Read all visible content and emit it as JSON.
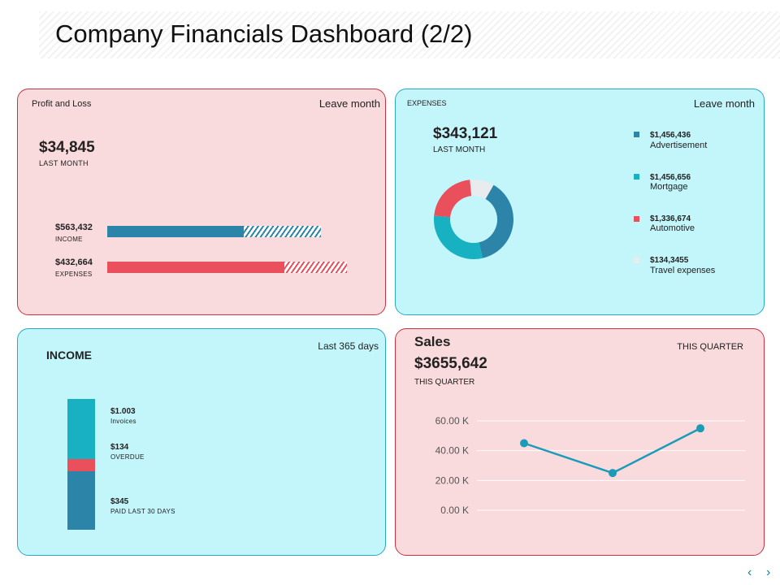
{
  "title": "Company Financials Dashboard (2/2)",
  "colors": {
    "blue": "#2c84a8",
    "teal": "#18b1c2",
    "red": "#e9505b",
    "light": "#e8ecef"
  },
  "profit_loss": {
    "header": "Profit and Loss",
    "filter": "Leave month",
    "amount": "$34,845",
    "amount_label": "LAST MONTH",
    "bars": [
      {
        "value": "$563,432",
        "label": "INCOME",
        "solid": 0.64,
        "total": 1.0
      },
      {
        "value": "$432,664",
        "label": "EXPENSES",
        "solid": 0.74,
        "total": 1.0
      }
    ]
  },
  "expenses": {
    "header": "EXPENSES",
    "filter": "Leave month",
    "amount": "$343,121",
    "amount_label": "LAST MONTH",
    "legend": [
      {
        "value": "$1,456,436",
        "label": "Advertisement",
        "color": "#2c84a8"
      },
      {
        "value": "$1,456,656",
        "label": "Mortgage",
        "color": "#18b1c2"
      },
      {
        "value": "$1,336,674",
        "label": "Automotive",
        "color": "#e9505b"
      },
      {
        "value": "$134,3455",
        "label": "Travel expenses",
        "color": "#e8ecef"
      }
    ]
  },
  "income": {
    "header": "INCOME",
    "filter": "Last 365 days",
    "items": [
      {
        "value": "$1.003",
        "label": "Invoices"
      },
      {
        "value": "$134",
        "label": "OVERDUE"
      },
      {
        "value": "$345",
        "label": "PAID LAST 30 DAYS"
      }
    ]
  },
  "sales": {
    "header": "Sales",
    "amount": "$3655,642",
    "amount_label": "THIS QUARTER",
    "filter": "THIS QUARTER"
  },
  "chart_data": [
    {
      "type": "pie",
      "title": "",
      "labels": [
        "Advertisement",
        "Mortgage",
        "Automotive",
        "Travel expenses"
      ],
      "values": [
        38,
        30,
        22,
        10
      ],
      "colors": [
        "#2c84a8",
        "#18b1c2",
        "#e9505b",
        "#e8ecef"
      ]
    },
    {
      "type": "bar",
      "title": "",
      "categories": [
        "Invoices",
        "OVERDUE",
        "PAID LAST 30 DAYS"
      ],
      "values": [
        37,
        44,
        80
      ],
      "colors": [
        "#18b1c2",
        "#e9505b",
        "#2c84a8"
      ]
    },
    {
      "type": "line",
      "title": "",
      "x": [
        1,
        2,
        3
      ],
      "y": [
        45000,
        25000,
        55000
      ],
      "ylim": [
        0,
        60000
      ],
      "yticks": [
        "0.00 K",
        "20.00 K",
        "40.00 K",
        "60.00 K"
      ],
      "grid": true,
      "color": "#1a9bb8"
    }
  ],
  "nav": {
    "prev": "‹",
    "next": "›"
  }
}
